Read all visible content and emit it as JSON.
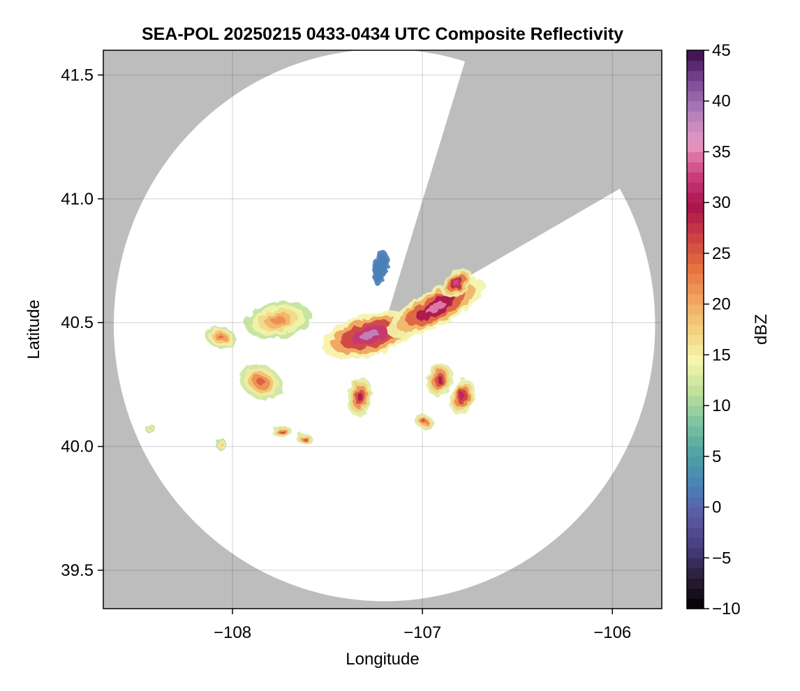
{
  "chart_data": {
    "type": "heatmap",
    "title": "SEA-POL 20250215 0433-0434 UTC Composite Reflectivity",
    "xlabel": "Longitude",
    "ylabel": "Latitude",
    "xlim": [
      -108.68,
      -105.74
    ],
    "ylim": [
      39.345,
      41.6
    ],
    "x_ticks": [
      -108,
      -107,
      -106
    ],
    "x_tick_labels": [
      "−108",
      "−107",
      "−106"
    ],
    "y_ticks": [
      39.5,
      40.0,
      40.5,
      41.0,
      41.5
    ],
    "y_tick_labels": [
      "39.5",
      "40.0",
      "40.5",
      "41.0",
      "41.5"
    ],
    "grid": true,
    "radar": {
      "center_lon": -107.2,
      "center_lat": 40.49,
      "radius_lat_deg": 1.115,
      "radius_lon_deg": 1.425,
      "blocked_sectors_deg": [
        [
          17.3,
          60.4
        ]
      ]
    },
    "colorbar": {
      "label": "dBZ",
      "min": -10,
      "max": 45,
      "ticks": [
        -10,
        -5,
        0,
        5,
        10,
        15,
        20,
        25,
        30,
        35,
        40,
        45
      ],
      "tick_labels": [
        "−10",
        "−5",
        "0",
        "5",
        "10",
        "15",
        "20",
        "25",
        "30",
        "35",
        "40",
        "45"
      ],
      "colormap": "spectral-with-magentas",
      "colors": [
        "#000000",
        "#2a1e36",
        "#473d80",
        "#5b5aa4",
        "#4a82b8",
        "#4ea3a4",
        "#7fc4a0",
        "#bfe09a",
        "#f7f6ad",
        "#f2d07f",
        "#f1a35c",
        "#e4713f",
        "#cc3f42",
        "#a8134d",
        "#cd3f7f",
        "#e69ac3",
        "#b27fba",
        "#7c4995",
        "#3a0b4c"
      ],
      "levels": 55
    },
    "echoes": [
      {
        "name": "central-core",
        "lon": -107.28,
        "lat": 40.45,
        "dbz": 38
      },
      {
        "name": "northeast-band",
        "lon": -106.93,
        "lat": 40.56,
        "dbz": 35
      },
      {
        "name": "northeast-band-tip",
        "lon": -106.82,
        "lat": 40.66,
        "dbz": 33
      },
      {
        "name": "west-cell",
        "lon": -108.06,
        "lat": 40.44,
        "dbz": 24
      },
      {
        "name": "west-complex",
        "lon": -107.76,
        "lat": 40.51,
        "dbz": 22
      },
      {
        "name": "southwest-cell",
        "lon": -107.85,
        "lat": 40.26,
        "dbz": 25
      },
      {
        "name": "south-cell",
        "lon": -107.33,
        "lat": 40.2,
        "dbz": 30
      },
      {
        "name": "southeast-cell-1",
        "lon": -106.91,
        "lat": 40.27,
        "dbz": 30
      },
      {
        "name": "southeast-cell-2",
        "lon": -106.79,
        "lat": 40.2,
        "dbz": 31
      },
      {
        "name": "south-small-1",
        "lon": -107.74,
        "lat": 40.06,
        "dbz": 27
      },
      {
        "name": "south-small-2",
        "lon": -107.62,
        "lat": 40.03,
        "dbz": 26
      },
      {
        "name": "south-small-3",
        "lon": -106.99,
        "lat": 40.1,
        "dbz": 26
      },
      {
        "name": "far-west-1",
        "lon": -108.43,
        "lat": 40.07,
        "dbz": 19
      },
      {
        "name": "far-west-2",
        "lon": -108.06,
        "lat": 40.01,
        "dbz": 19
      },
      {
        "name": "north-clear-air",
        "lon": -107.22,
        "lat": 40.72,
        "dbz": 2
      }
    ]
  }
}
